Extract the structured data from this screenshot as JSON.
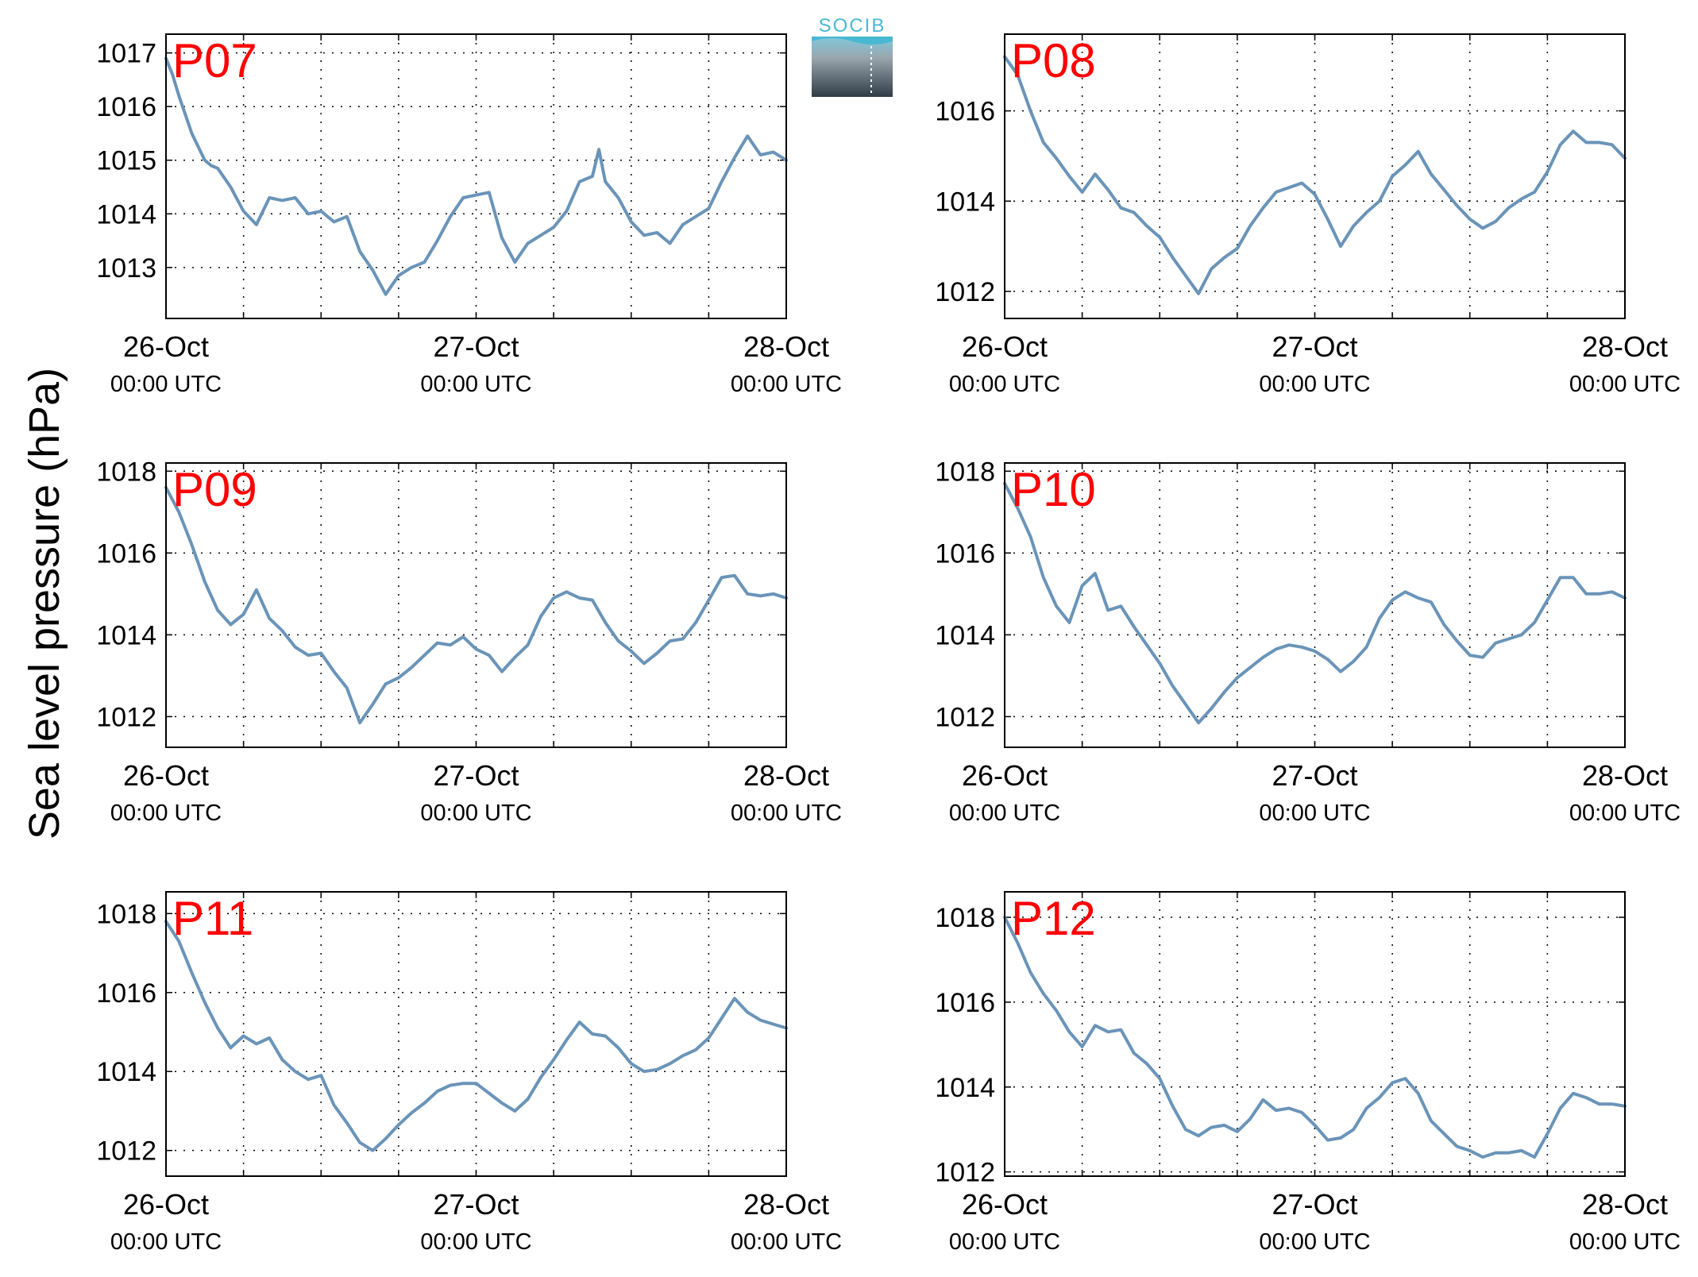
{
  "figure": {
    "ylabel": "Sea level pressure (hPa)",
    "logo_text": "SOCIB",
    "colors": {
      "line": "#6a94b8",
      "label": "#ff0000",
      "axis": "#000000",
      "grid": "#000000"
    }
  },
  "chart_data": [
    {
      "type": "line",
      "title": "P07",
      "x_ticks": [
        {
          "date": "26-Oct",
          "time": "00:00 UTC"
        },
        {
          "date": "27-Oct",
          "time": "00:00 UTC"
        },
        {
          "date": "28-Oct",
          "time": "00:00 UTC"
        }
      ],
      "xlim": [
        0,
        48
      ],
      "ylim": [
        1012.05,
        1017.35
      ],
      "yticks": [
        1013,
        1014,
        1015,
        1016,
        1017
      ],
      "grid": true,
      "series": [
        {
          "x_hours": [
            0,
            0.5,
            1,
            2,
            3,
            3.5,
            4,
            5,
            6,
            7,
            8,
            9,
            10,
            11,
            12,
            13,
            14,
            15,
            16,
            17,
            18,
            19,
            20,
            21,
            22,
            23,
            24,
            25,
            26,
            27,
            28,
            29,
            30,
            31,
            32,
            33,
            33.5,
            34,
            35,
            36,
            37,
            38,
            39,
            40,
            41,
            42,
            43,
            44,
            45,
            46,
            47,
            48
          ],
          "values": [
            1016.9,
            1016.6,
            1016.2,
            1015.5,
            1015.0,
            1014.9,
            1014.85,
            1014.5,
            1014.05,
            1013.8,
            1014.3,
            1014.25,
            1014.3,
            1014.0,
            1014.05,
            1013.85,
            1013.95,
            1013.3,
            1012.95,
            1012.5,
            1012.85,
            1013.0,
            1013.1,
            1013.5,
            1013.95,
            1014.3,
            1014.35,
            1014.4,
            1013.55,
            1013.1,
            1013.45,
            1013.6,
            1013.75,
            1014.05,
            1014.6,
            1014.7,
            1015.2,
            1014.6,
            1014.3,
            1013.85,
            1013.6,
            1013.65,
            1013.45,
            1013.8,
            1013.95,
            1014.1,
            1014.6,
            1015.05,
            1015.45,
            1015.1,
            1015.15,
            1015.0
          ]
        }
      ]
    },
    {
      "type": "line",
      "title": "P08",
      "x_ticks": [
        {
          "date": "26-Oct",
          "time": "00:00 UTC"
        },
        {
          "date": "27-Oct",
          "time": "00:00 UTC"
        },
        {
          "date": "28-Oct",
          "time": "00:00 UTC"
        }
      ],
      "xlim": [
        0,
        48
      ],
      "ylim": [
        1011.4,
        1017.7
      ],
      "yticks": [
        1012,
        1014,
        1016
      ],
      "grid": true,
      "series": [
        {
          "x_hours": [
            0,
            1,
            2,
            3,
            4,
            5,
            6,
            7,
            8,
            9,
            10,
            11,
            12,
            13,
            14,
            15,
            16,
            17,
            18,
            19,
            20,
            21,
            22,
            23,
            24,
            25,
            26,
            27,
            28,
            29,
            30,
            31,
            32,
            33,
            34,
            35,
            36,
            37,
            38,
            39,
            40,
            41,
            42,
            43,
            44,
            45,
            46,
            47,
            48
          ],
          "values": [
            1017.2,
            1016.8,
            1016.0,
            1015.3,
            1014.95,
            1014.55,
            1014.2,
            1014.6,
            1014.25,
            1013.85,
            1013.75,
            1013.45,
            1013.2,
            1012.75,
            1012.35,
            1011.95,
            1012.5,
            1012.75,
            1012.95,
            1013.45,
            1013.85,
            1014.2,
            1014.3,
            1014.4,
            1014.15,
            1013.6,
            1013.0,
            1013.45,
            1013.75,
            1014.0,
            1014.55,
            1014.8,
            1015.1,
            1014.6,
            1014.25,
            1013.9,
            1013.6,
            1013.4,
            1013.55,
            1013.85,
            1014.05,
            1014.2,
            1014.65,
            1015.25,
            1015.55,
            1015.3,
            1015.3,
            1015.25,
            1014.95
          ]
        }
      ]
    },
    {
      "type": "line",
      "title": "P09",
      "x_ticks": [
        {
          "date": "26-Oct",
          "time": "00:00 UTC"
        },
        {
          "date": "27-Oct",
          "time": "00:00 UTC"
        },
        {
          "date": "28-Oct",
          "time": "00:00 UTC"
        }
      ],
      "xlim": [
        0,
        48
      ],
      "ylim": [
        1011.25,
        1018.2
      ],
      "yticks": [
        1012,
        1014,
        1016,
        1018
      ],
      "grid": true,
      "series": [
        {
          "x_hours": [
            0,
            1,
            2,
            3,
            4,
            5,
            6,
            7,
            8,
            9,
            10,
            11,
            12,
            13,
            14,
            15,
            16,
            17,
            18,
            19,
            20,
            21,
            22,
            23,
            24,
            25,
            26,
            27,
            28,
            29,
            30,
            31,
            32,
            33,
            34,
            35,
            36,
            37,
            38,
            39,
            40,
            41,
            42,
            43,
            44,
            45,
            46,
            47,
            48
          ],
          "values": [
            1017.6,
            1017.0,
            1016.2,
            1015.3,
            1014.6,
            1014.25,
            1014.5,
            1015.1,
            1014.4,
            1014.1,
            1013.7,
            1013.5,
            1013.55,
            1013.1,
            1012.7,
            1011.85,
            1012.3,
            1012.8,
            1012.95,
            1013.2,
            1013.5,
            1013.8,
            1013.75,
            1013.95,
            1013.65,
            1013.5,
            1013.1,
            1013.45,
            1013.75,
            1014.45,
            1014.9,
            1015.05,
            1014.9,
            1014.85,
            1014.3,
            1013.85,
            1013.6,
            1013.3,
            1013.55,
            1013.85,
            1013.9,
            1014.3,
            1014.85,
            1015.4,
            1015.45,
            1015.0,
            1014.95,
            1015.0,
            1014.9
          ]
        }
      ]
    },
    {
      "type": "line",
      "title": "P10",
      "x_ticks": [
        {
          "date": "26-Oct",
          "time": "00:00 UTC"
        },
        {
          "date": "27-Oct",
          "time": "00:00 UTC"
        },
        {
          "date": "28-Oct",
          "time": "00:00 UTC"
        }
      ],
      "xlim": [
        0,
        48
      ],
      "ylim": [
        1011.25,
        1018.2
      ],
      "yticks": [
        1012,
        1014,
        1016,
        1018
      ],
      "grid": true,
      "series": [
        {
          "x_hours": [
            0,
            1,
            2,
            3,
            4,
            5,
            6,
            7,
            8,
            9,
            10,
            11,
            12,
            13,
            14,
            15,
            16,
            17,
            18,
            19,
            20,
            21,
            22,
            23,
            24,
            25,
            26,
            27,
            28,
            29,
            30,
            31,
            32,
            33,
            34,
            35,
            36,
            37,
            38,
            39,
            40,
            41,
            42,
            43,
            44,
            45,
            46,
            47,
            48
          ],
          "values": [
            1017.7,
            1017.1,
            1016.4,
            1015.4,
            1014.7,
            1014.3,
            1015.2,
            1015.5,
            1014.6,
            1014.7,
            1014.2,
            1013.75,
            1013.3,
            1012.75,
            1012.3,
            1011.85,
            1012.2,
            1012.6,
            1012.95,
            1013.2,
            1013.45,
            1013.65,
            1013.75,
            1013.7,
            1013.6,
            1013.4,
            1013.1,
            1013.35,
            1013.7,
            1014.4,
            1014.85,
            1015.05,
            1014.9,
            1014.8,
            1014.25,
            1013.85,
            1013.5,
            1013.45,
            1013.8,
            1013.9,
            1014.0,
            1014.3,
            1014.85,
            1015.4,
            1015.4,
            1015.0,
            1015.0,
            1015.05,
            1014.9
          ]
        }
      ]
    },
    {
      "type": "line",
      "title": "P11",
      "x_ticks": [
        {
          "date": "26-Oct",
          "time": "00:00 UTC"
        },
        {
          "date": "27-Oct",
          "time": "00:00 UTC"
        },
        {
          "date": "28-Oct",
          "time": "00:00 UTC"
        }
      ],
      "xlim": [
        0,
        48
      ],
      "ylim": [
        1011.35,
        1018.55
      ],
      "yticks": [
        1012,
        1014,
        1016,
        1018
      ],
      "grid": true,
      "series": [
        {
          "x_hours": [
            0,
            1,
            2,
            3,
            4,
            5,
            6,
            7,
            8,
            9,
            10,
            11,
            12,
            13,
            14,
            15,
            16,
            17,
            18,
            19,
            20,
            21,
            22,
            23,
            24,
            25,
            26,
            27,
            28,
            29,
            30,
            31,
            32,
            33,
            34,
            35,
            36,
            37,
            38,
            39,
            40,
            41,
            42,
            43,
            44,
            45,
            46,
            47,
            48
          ],
          "values": [
            1017.8,
            1017.3,
            1016.5,
            1015.75,
            1015.1,
            1014.6,
            1014.9,
            1014.7,
            1014.85,
            1014.3,
            1014.0,
            1013.8,
            1013.9,
            1013.15,
            1012.7,
            1012.2,
            1012.0,
            1012.3,
            1012.65,
            1012.95,
            1013.2,
            1013.5,
            1013.65,
            1013.7,
            1013.7,
            1013.45,
            1013.2,
            1013.0,
            1013.3,
            1013.85,
            1014.3,
            1014.8,
            1015.25,
            1014.95,
            1014.9,
            1014.6,
            1014.2,
            1014.0,
            1014.05,
            1014.2,
            1014.4,
            1014.55,
            1014.85,
            1015.35,
            1015.85,
            1015.5,
            1015.3,
            1015.2,
            1015.1
          ]
        }
      ]
    },
    {
      "type": "line",
      "title": "P12",
      "x_ticks": [
        {
          "date": "26-Oct",
          "time": "00:00 UTC"
        },
        {
          "date": "27-Oct",
          "time": "00:00 UTC"
        },
        {
          "date": "28-Oct",
          "time": "00:00 UTC"
        }
      ],
      "xlim": [
        0,
        48
      ],
      "ylim": [
        1011.9,
        1018.6
      ],
      "yticks": [
        1012,
        1014,
        1016,
        1018
      ],
      "grid": true,
      "series": [
        {
          "x_hours": [
            0,
            1,
            2,
            3,
            4,
            5,
            6,
            7,
            8,
            9,
            10,
            11,
            12,
            13,
            14,
            15,
            16,
            17,
            18,
            19,
            20,
            21,
            22,
            23,
            24,
            25,
            26,
            27,
            28,
            29,
            30,
            31,
            32,
            33,
            34,
            35,
            36,
            37,
            38,
            39,
            40,
            41,
            42,
            43,
            44,
            45,
            46,
            47,
            48
          ],
          "values": [
            1018.0,
            1017.4,
            1016.7,
            1016.2,
            1015.8,
            1015.3,
            1014.95,
            1015.45,
            1015.3,
            1015.35,
            1014.8,
            1014.55,
            1014.2,
            1013.55,
            1013.0,
            1012.85,
            1013.05,
            1013.1,
            1012.95,
            1013.25,
            1013.7,
            1013.45,
            1013.5,
            1013.4,
            1013.1,
            1012.75,
            1012.8,
            1013.0,
            1013.5,
            1013.75,
            1014.1,
            1014.2,
            1013.85,
            1013.2,
            1012.9,
            1012.6,
            1012.5,
            1012.35,
            1012.45,
            1012.45,
            1012.5,
            1012.35,
            1012.9,
            1013.5,
            1013.85,
            1013.75,
            1013.6,
            1013.6,
            1013.55
          ]
        }
      ]
    }
  ]
}
